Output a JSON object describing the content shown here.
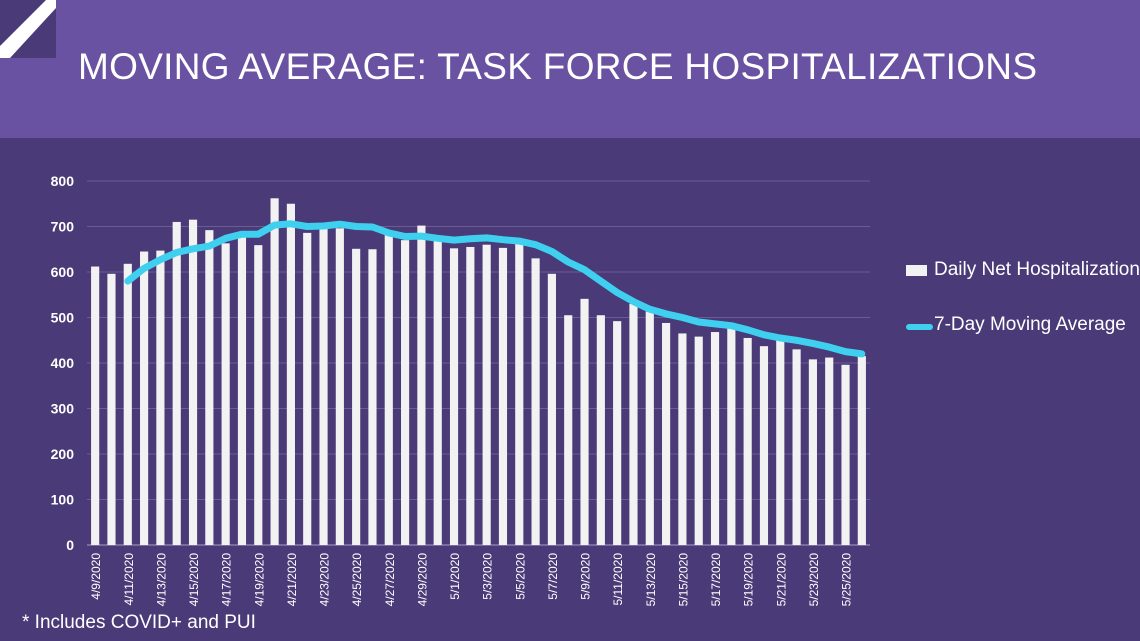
{
  "title": "MOVING AVERAGE: TASK FORCE HOSPITALIZATIONS",
  "footnote": "* Includes COVID+ and PUI",
  "chart_data": {
    "type": "bar",
    "title": "",
    "xlabel": "",
    "ylabel": "",
    "ylim": [
      0,
      800
    ],
    "yticks": [
      0,
      100,
      200,
      300,
      400,
      500,
      600,
      700,
      800
    ],
    "grid": true,
    "legend_position": "right",
    "categories": [
      "4/9/2020",
      "4/10/2020",
      "4/11/2020",
      "4/12/2020",
      "4/13/2020",
      "4/14/2020",
      "4/15/2020",
      "4/16/2020",
      "4/17/2020",
      "4/18/2020",
      "4/19/2020",
      "4/20/2020",
      "4/21/2020",
      "4/22/2020",
      "4/23/2020",
      "4/24/2020",
      "4/25/2020",
      "4/26/2020",
      "4/27/2020",
      "4/28/2020",
      "4/29/2020",
      "4/30/2020",
      "5/1/2020",
      "5/2/2020",
      "5/3/2020",
      "5/4/2020",
      "5/5/2020",
      "5/6/2020",
      "5/7/2020",
      "5/8/2020",
      "5/9/2020",
      "5/10/2020",
      "5/11/2020",
      "5/12/2020",
      "5/13/2020",
      "5/14/2020",
      "5/15/2020",
      "5/16/2020",
      "5/17/2020",
      "5/18/2020",
      "5/19/2020",
      "5/20/2020",
      "5/21/2020",
      "5/22/2020",
      "5/23/2020",
      "5/24/2020",
      "5/25/2020",
      "5/26/2020"
    ],
    "tick_labels": [
      "4/9/2020",
      "4/11/2020",
      "4/13/2020",
      "4/15/2020",
      "4/17/2020",
      "4/19/2020",
      "4/21/2020",
      "4/23/2020",
      "4/25/2020",
      "4/27/2020",
      "4/29/2020",
      "5/1/2020",
      "5/3/2020",
      "5/5/2020",
      "5/7/2020",
      "5/9/2020",
      "5/11/2020",
      "5/13/2020",
      "5/15/2020",
      "5/17/2020",
      "5/19/2020",
      "5/21/2020",
      "5/23/2020",
      "5/25/2020"
    ],
    "series": [
      {
        "name": "Daily Net Hospitalizations",
        "type": "bar",
        "color": "#f2f2f2",
        "values": [
          612,
          596,
          618,
          645,
          647,
          710,
          715,
          692,
          663,
          676,
          659,
          762,
          750,
          686,
          700,
          696,
          651,
          650,
          684,
          670,
          702,
          676,
          652,
          655,
          660,
          653,
          665,
          630,
          596,
          505,
          541,
          505,
          492,
          530,
          513,
          488,
          465,
          458,
          468,
          482,
          455,
          437,
          450,
          430,
          408,
          412,
          396,
          415
        ]
      },
      {
        "name": "7-Day Moving Average",
        "type": "line",
        "color": "#3fd0f0",
        "values": [
          null,
          null,
          580,
          608,
          627,
          643,
          651,
          657,
          674,
          683,
          683,
          703,
          706,
          700,
          701,
          705,
          700,
          699,
          686,
          678,
          679,
          674,
          670,
          673,
          675,
          671,
          668,
          660,
          645,
          622,
          605,
          580,
          555,
          535,
          518,
          508,
          500,
          490,
          486,
          482,
          473,
          462,
          455,
          450,
          443,
          435,
          425,
          420
        ]
      }
    ]
  }
}
